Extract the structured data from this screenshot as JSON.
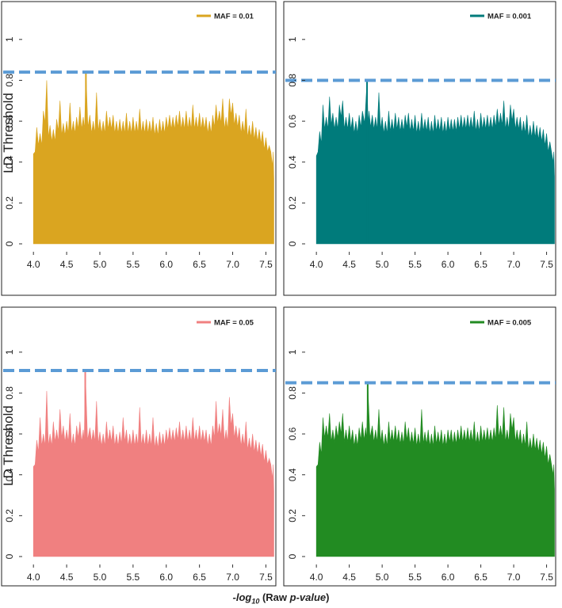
{
  "figure": {
    "ylabel": "LD Threshold",
    "xlabel_prefix": "-log",
    "xlabel_sub": "10",
    "xlabel_pvalue": "p-value",
    "xlabel_text_before": " (Raw ",
    "xlabel_text_after": ")"
  },
  "chart_data": [
    {
      "type": "area",
      "legend": "MAF = 0.01",
      "color": "#DAA520",
      "threshold_color": "#5B9BD5",
      "threshold": 0.84,
      "xlim": [
        3.95,
        7.65
      ],
      "ylim": [
        0,
        1.1
      ],
      "xticks": [
        "4.0",
        "4.5",
        "5.0",
        "5.5",
        "6.0",
        "6.5",
        "7.0",
        "7.5"
      ],
      "yticks": [
        "0",
        "0.2",
        "0.4",
        "0.6",
        "0.8",
        "1"
      ],
      "peak_x": 4.79,
      "peak_y": 0.84,
      "x": [
        4.0,
        4.05,
        4.1,
        4.15,
        4.2,
        4.25,
        4.3,
        4.35,
        4.4,
        4.45,
        4.5,
        4.55,
        4.6,
        4.65,
        4.7,
        4.75,
        4.79,
        4.85,
        4.9,
        4.95,
        5.0,
        5.05,
        5.1,
        5.15,
        5.2,
        5.25,
        5.3,
        5.35,
        5.4,
        5.45,
        5.5,
        5.55,
        5.6,
        5.65,
        5.7,
        5.75,
        5.8,
        5.85,
        5.9,
        5.95,
        6.0,
        6.05,
        6.1,
        6.15,
        6.2,
        6.25,
        6.3,
        6.35,
        6.4,
        6.45,
        6.5,
        6.55,
        6.6,
        6.65,
        6.7,
        6.75,
        6.8,
        6.85,
        6.9,
        6.95,
        7.0,
        7.05,
        7.1,
        7.15,
        7.2,
        7.25,
        7.3,
        7.35,
        7.4,
        7.45,
        7.5,
        7.55,
        7.6,
        7.62
      ],
      "y": [
        0.44,
        0.57,
        0.54,
        0.65,
        0.8,
        0.58,
        0.56,
        0.61,
        0.7,
        0.59,
        0.6,
        0.69,
        0.6,
        0.62,
        0.67,
        0.62,
        0.84,
        0.63,
        0.6,
        0.74,
        0.61,
        0.6,
        0.65,
        0.62,
        0.63,
        0.6,
        0.61,
        0.6,
        0.64,
        0.6,
        0.62,
        0.6,
        0.66,
        0.6,
        0.61,
        0.6,
        0.62,
        0.59,
        0.61,
        0.6,
        0.62,
        0.63,
        0.62,
        0.63,
        0.65,
        0.62,
        0.65,
        0.62,
        0.68,
        0.62,
        0.64,
        0.62,
        0.62,
        0.6,
        0.63,
        0.68,
        0.65,
        0.71,
        0.62,
        0.71,
        0.69,
        0.64,
        0.63,
        0.6,
        0.66,
        0.58,
        0.6,
        0.57,
        0.56,
        0.55,
        0.52,
        0.48,
        0.38,
        0.32
      ]
    },
    {
      "type": "area",
      "legend": "MAF = 0.001",
      "color": "#007B7B",
      "threshold_color": "#5B9BD5",
      "threshold": 0.8,
      "xlim": [
        3.95,
        7.65
      ],
      "ylim": [
        0,
        1.1
      ],
      "xticks": [
        "4.0",
        "4.5",
        "5.0",
        "5.5",
        "6.0",
        "6.5",
        "7.0",
        "7.5"
      ],
      "yticks": [
        "0",
        "0.2",
        "0.4",
        "0.6",
        "0.8",
        "1"
      ],
      "peak_x": 4.77,
      "peak_y": 0.8,
      "x": [
        4.0,
        4.05,
        4.1,
        4.15,
        4.2,
        4.25,
        4.3,
        4.35,
        4.4,
        4.45,
        4.5,
        4.55,
        4.6,
        4.65,
        4.7,
        4.77,
        4.8,
        4.85,
        4.9,
        4.95,
        5.0,
        5.05,
        5.1,
        5.15,
        5.2,
        5.25,
        5.3,
        5.35,
        5.4,
        5.45,
        5.5,
        5.55,
        5.6,
        5.65,
        5.7,
        5.75,
        5.8,
        5.85,
        5.9,
        5.95,
        6.0,
        6.05,
        6.1,
        6.15,
        6.2,
        6.25,
        6.3,
        6.35,
        6.4,
        6.45,
        6.5,
        6.55,
        6.6,
        6.65,
        6.7,
        6.75,
        6.8,
        6.85,
        6.9,
        6.95,
        7.0,
        7.05,
        7.1,
        7.15,
        7.2,
        7.25,
        7.3,
        7.35,
        7.4,
        7.45,
        7.5,
        7.55,
        7.6,
        7.62
      ],
      "y": [
        0.43,
        0.55,
        0.68,
        0.62,
        0.72,
        0.64,
        0.62,
        0.68,
        0.7,
        0.62,
        0.64,
        0.62,
        0.6,
        0.63,
        0.65,
        0.8,
        0.65,
        0.63,
        0.62,
        0.74,
        0.62,
        0.6,
        0.65,
        0.61,
        0.64,
        0.62,
        0.61,
        0.63,
        0.64,
        0.61,
        0.63,
        0.6,
        0.64,
        0.61,
        0.62,
        0.6,
        0.63,
        0.61,
        0.62,
        0.6,
        0.62,
        0.61,
        0.61,
        0.62,
        0.63,
        0.62,
        0.63,
        0.62,
        0.65,
        0.61,
        0.64,
        0.62,
        0.63,
        0.62,
        0.63,
        0.66,
        0.64,
        0.7,
        0.62,
        0.68,
        0.66,
        0.62,
        0.62,
        0.6,
        0.63,
        0.58,
        0.6,
        0.58,
        0.57,
        0.56,
        0.54,
        0.5,
        0.4,
        0.33
      ]
    },
    {
      "type": "area",
      "legend": "MAF = 0.05",
      "color": "#F08080",
      "threshold_color": "#5B9BD5",
      "threshold": 0.91,
      "xlim": [
        3.95,
        7.65
      ],
      "ylim": [
        0,
        1.1
      ],
      "xticks": [
        "4.0",
        "4.5",
        "5.0",
        "5.5",
        "6.0",
        "6.5",
        "7.0",
        "7.5"
      ],
      "yticks": [
        "0",
        "0.2",
        "0.4",
        "0.6",
        "0.8",
        "1"
      ],
      "peak_x": 4.78,
      "peak_y": 0.91,
      "x": [
        4.0,
        4.05,
        4.1,
        4.15,
        4.2,
        4.25,
        4.3,
        4.35,
        4.4,
        4.45,
        4.5,
        4.55,
        4.6,
        4.65,
        4.7,
        4.75,
        4.78,
        4.85,
        4.9,
        4.95,
        5.0,
        5.05,
        5.1,
        5.15,
        5.2,
        5.25,
        5.3,
        5.35,
        5.4,
        5.45,
        5.5,
        5.55,
        5.6,
        5.65,
        5.7,
        5.75,
        5.8,
        5.85,
        5.9,
        5.95,
        6.0,
        6.05,
        6.1,
        6.15,
        6.2,
        6.25,
        6.3,
        6.35,
        6.4,
        6.45,
        6.5,
        6.55,
        6.6,
        6.65,
        6.7,
        6.75,
        6.8,
        6.85,
        6.9,
        6.95,
        7.0,
        7.05,
        7.1,
        7.15,
        7.2,
        7.25,
        7.3,
        7.35,
        7.4,
        7.45,
        7.5,
        7.55,
        7.6,
        7.62
      ],
      "y": [
        0.44,
        0.57,
        0.68,
        0.6,
        0.81,
        0.6,
        0.66,
        0.62,
        0.72,
        0.64,
        0.62,
        0.7,
        0.6,
        0.64,
        0.66,
        0.62,
        0.91,
        0.63,
        0.62,
        0.76,
        0.61,
        0.6,
        0.66,
        0.62,
        0.64,
        0.6,
        0.61,
        0.68,
        0.62,
        0.6,
        0.62,
        0.6,
        0.73,
        0.6,
        0.62,
        0.6,
        0.68,
        0.59,
        0.61,
        0.6,
        0.62,
        0.63,
        0.62,
        0.63,
        0.66,
        0.62,
        0.64,
        0.62,
        0.68,
        0.62,
        0.64,
        0.62,
        0.62,
        0.6,
        0.64,
        0.76,
        0.65,
        0.72,
        0.62,
        0.78,
        0.7,
        0.64,
        0.63,
        0.6,
        0.66,
        0.58,
        0.6,
        0.57,
        0.56,
        0.55,
        0.52,
        0.48,
        0.38,
        0.32
      ]
    },
    {
      "type": "area",
      "legend": "MAF = 0.005",
      "color": "#228B22",
      "threshold_color": "#5B9BD5",
      "threshold": 0.85,
      "xlim": [
        3.95,
        7.65
      ],
      "ylim": [
        0,
        1.1
      ],
      "xticks": [
        "4.0",
        "4.5",
        "5.0",
        "5.5",
        "6.0",
        "6.5",
        "7.0",
        "7.5"
      ],
      "yticks": [
        "0",
        "0.2",
        "0.4",
        "0.6",
        "0.8",
        "1"
      ],
      "peak_x": 4.78,
      "peak_y": 0.85,
      "x": [
        4.0,
        4.05,
        4.1,
        4.15,
        4.2,
        4.25,
        4.3,
        4.35,
        4.4,
        4.45,
        4.5,
        4.55,
        4.6,
        4.65,
        4.7,
        4.75,
        4.78,
        4.85,
        4.9,
        4.95,
        5.0,
        5.05,
        5.1,
        5.15,
        5.2,
        5.25,
        5.3,
        5.35,
        5.4,
        5.45,
        5.5,
        5.55,
        5.6,
        5.65,
        5.7,
        5.75,
        5.8,
        5.85,
        5.9,
        5.95,
        6.0,
        6.05,
        6.1,
        6.15,
        6.2,
        6.25,
        6.3,
        6.35,
        6.4,
        6.45,
        6.5,
        6.55,
        6.6,
        6.65,
        6.7,
        6.75,
        6.8,
        6.85,
        6.9,
        6.95,
        7.0,
        7.05,
        7.1,
        7.15,
        7.2,
        7.25,
        7.3,
        7.35,
        7.4,
        7.45,
        7.5,
        7.55,
        7.6,
        7.62
      ],
      "y": [
        0.44,
        0.56,
        0.68,
        0.64,
        0.7,
        0.62,
        0.64,
        0.66,
        0.7,
        0.62,
        0.64,
        0.62,
        0.6,
        0.63,
        0.66,
        0.63,
        0.85,
        0.64,
        0.62,
        0.72,
        0.62,
        0.6,
        0.66,
        0.62,
        0.64,
        0.62,
        0.61,
        0.66,
        0.63,
        0.61,
        0.63,
        0.6,
        0.72,
        0.61,
        0.62,
        0.6,
        0.64,
        0.61,
        0.62,
        0.6,
        0.62,
        0.62,
        0.61,
        0.62,
        0.64,
        0.62,
        0.63,
        0.62,
        0.66,
        0.61,
        0.64,
        0.62,
        0.63,
        0.62,
        0.63,
        0.74,
        0.64,
        0.73,
        0.62,
        0.7,
        0.68,
        0.62,
        0.62,
        0.6,
        0.66,
        0.58,
        0.6,
        0.58,
        0.57,
        0.56,
        0.54,
        0.5,
        0.4,
        0.33
      ]
    }
  ]
}
